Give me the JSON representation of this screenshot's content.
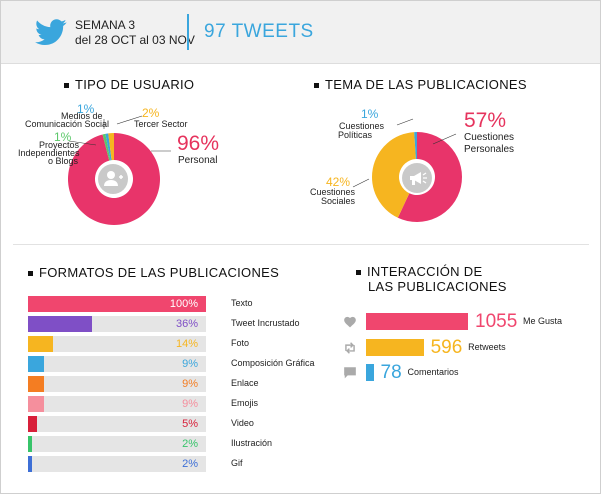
{
  "header": {
    "week_line1": "SEMANA 3",
    "week_line2": "del 28 OCT al 03 NOV",
    "tweet_count": "97 TWEETS",
    "brand_color": "#3aa6dd"
  },
  "user_type": {
    "title": "TIPO DE USUARIO",
    "labels": {
      "media_pct": "1%",
      "media_l1": "Medios de",
      "media_l2": "Comunicación Social",
      "third_pct": "2%",
      "third_l1": "Tercer Sector",
      "indep_pct": "1%",
      "indep_l1": "Proyectos",
      "indep_l2": "Independientes",
      "indep_l3": "o Blogs",
      "personal_pct": "96%",
      "personal_l1": "Personal"
    },
    "icon": "add-user-icon"
  },
  "topic": {
    "title": "TEMA DE LAS PUBLICACIONES",
    "labels": {
      "pol_pct": "1%",
      "pol_l1": "Cuestiones",
      "pol_l2": "Políticas",
      "pers_pct": "57%",
      "pers_l1": "Cuestiones",
      "pers_l2": "Personales",
      "soc_pct": "42%",
      "soc_l1": "Cuestiones",
      "soc_l2": "Sociales"
    },
    "icon": "megaphone-icon"
  },
  "formats": {
    "title": "FORMATOS DE LAS PUBLICACIONES"
  },
  "interaction": {
    "title_l1": "INTERACCIÓN DE",
    "title_l2": "LAS PUBLICACIONES"
  },
  "chart_data": [
    {
      "type": "pie",
      "title": "TIPO DE USUARIO",
      "categories": [
        "Personal",
        "Medios de Comunicación Social",
        "Tercer Sector",
        "Proyectos Independientes o Blogs"
      ],
      "values": [
        96,
        1,
        2,
        1
      ],
      "colors": [
        "#e8346a",
        "#3aa6dd",
        "#f6b520",
        "#5cc86a"
      ],
      "style": "donut"
    },
    {
      "type": "pie",
      "title": "TEMA DE LAS PUBLICACIONES",
      "categories": [
        "Cuestiones Personales",
        "Cuestiones Sociales",
        "Cuestiones Políticas"
      ],
      "values": [
        57,
        42,
        1
      ],
      "colors": [
        "#e8346a",
        "#f6b520",
        "#3aa6dd"
      ],
      "style": "donut"
    },
    {
      "type": "bar",
      "title": "FORMATOS DE LAS PUBLICACIONES",
      "orientation": "horizontal",
      "categories": [
        "Texto",
        "Tweet Incrustado",
        "Foto",
        "Composición Gráfica",
        "Enlace",
        "Emojis",
        "Video",
        "Ilustración",
        "Gif"
      ],
      "values": [
        100,
        36,
        14,
        9,
        9,
        9,
        5,
        2,
        2
      ],
      "value_labels": [
        "100%",
        "36%",
        "14%",
        "9%",
        "9%",
        "9%",
        "5%",
        "2%",
        "2%"
      ],
      "colors": [
        "#f0466e",
        "#7f4fc6",
        "#f6b520",
        "#3aa6dd",
        "#f47d22",
        "#f58f9d",
        "#d8203a",
        "#37c46a",
        "#3d6fd6"
      ],
      "xlim": [
        0,
        100
      ],
      "track_color": "#e5e5e5"
    },
    {
      "type": "bar",
      "title": "INTERACCIÓN DE LAS PUBLICACIONES",
      "orientation": "horizontal",
      "categories": [
        "Me Gusta",
        "Retweets",
        "Comentarios"
      ],
      "values": [
        1055,
        596,
        78
      ],
      "value_labels": [
        "1055",
        "596",
        "78"
      ],
      "colors": [
        "#f0466e",
        "#f6b520",
        "#3aa6dd"
      ],
      "icons": [
        "heart-icon",
        "retweet-icon",
        "comment-icon"
      ]
    }
  ]
}
